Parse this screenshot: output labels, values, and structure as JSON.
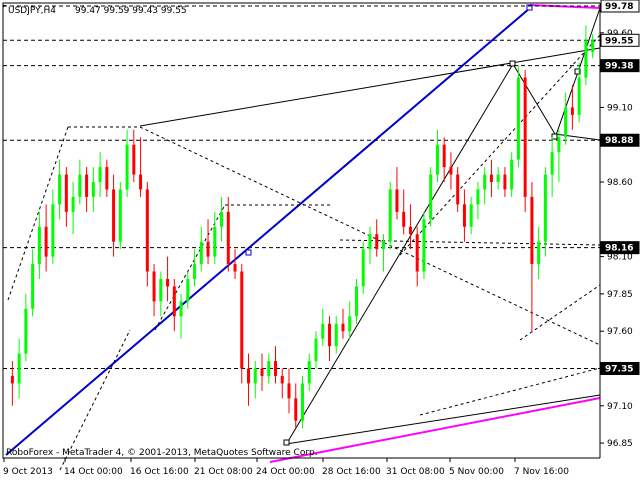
{
  "chart_data": {
    "type": "candlestick",
    "symbol": "USDJPY,H4",
    "ohlc_readout": "99.47 99.59 99.43 99.55",
    "footer": "RoboForex - MetaTrader 4, © 2001-2013, MetaQuotes Software Corp.",
    "ylim": [
      96.75,
      99.8
    ],
    "y_ticks": [
      "99.60",
      "99.10",
      "98.60",
      "98.10",
      "97.85",
      "97.60",
      "97.10",
      "96.85"
    ],
    "x_ticks": [
      "9 Oct 2013",
      "14 Oct 00:00",
      "16 Oct 16:00",
      "21 Oct 08:00",
      "24 Oct 00:00",
      "28 Oct 16:00",
      "31 Oct 08:00",
      "5 Nov 00:00",
      "7 Nov 16:00"
    ],
    "levels": [
      {
        "value": "99.78",
        "price": 99.78,
        "color": "#000000"
      },
      {
        "value": "99.55",
        "price": 99.55,
        "color": "#000000"
      },
      {
        "value": "99.38",
        "price": 99.38,
        "color": "#ffffff"
      },
      {
        "value": "98.88",
        "price": 98.88,
        "color": "#ffffff"
      },
      {
        "value": "98.16",
        "price": 98.16,
        "color": "#ffffff"
      },
      {
        "value": "97.35",
        "price": 97.35,
        "color": "#ffffff"
      }
    ],
    "colors": {
      "bull": "#00ff00",
      "bear": "#ff0000",
      "trend": "#0000cd",
      "channel": "#ff00ff",
      "grid": "#000000"
    },
    "candles": [
      [
        97.3,
        97.4,
        97.1,
        97.25
      ],
      [
        97.25,
        97.55,
        97.15,
        97.45
      ],
      [
        97.45,
        97.85,
        97.4,
        97.75
      ],
      [
        97.75,
        98.15,
        97.7,
        98.05
      ],
      [
        98.05,
        98.4,
        97.95,
        98.3
      ],
      [
        98.3,
        98.45,
        98.0,
        98.1
      ],
      [
        98.1,
        98.55,
        98.05,
        98.45
      ],
      [
        98.45,
        98.75,
        98.35,
        98.65
      ],
      [
        98.65,
        98.7,
        98.3,
        98.4
      ],
      [
        98.4,
        98.6,
        98.25,
        98.5
      ],
      [
        98.5,
        98.75,
        98.45,
        98.65
      ],
      [
        98.65,
        98.7,
        98.4,
        98.5
      ],
      [
        98.5,
        98.7,
        98.4,
        98.6
      ],
      [
        98.6,
        98.8,
        98.5,
        98.7
      ],
      [
        98.7,
        98.75,
        98.5,
        98.55
      ],
      [
        98.55,
        98.65,
        98.1,
        98.2
      ],
      [
        98.2,
        98.6,
        98.15,
        98.55
      ],
      [
        98.55,
        98.95,
        98.5,
        98.85
      ],
      [
        98.85,
        98.95,
        98.6,
        98.65
      ],
      [
        98.65,
        98.9,
        98.5,
        98.55
      ],
      [
        98.55,
        98.6,
        97.9,
        98.0
      ],
      [
        98.0,
        98.05,
        97.7,
        97.8
      ],
      [
        97.8,
        98.0,
        97.7,
        97.95
      ],
      [
        97.95,
        98.1,
        97.8,
        97.9
      ],
      [
        97.9,
        97.95,
        97.6,
        97.7
      ],
      [
        97.7,
        97.85,
        97.55,
        97.8
      ],
      [
        97.8,
        98.0,
        97.75,
        97.95
      ],
      [
        97.95,
        98.15,
        97.9,
        98.05
      ],
      [
        98.05,
        98.3,
        98.0,
        98.2
      ],
      [
        98.2,
        98.35,
        98.05,
        98.1
      ],
      [
        98.1,
        98.4,
        98.05,
        98.3
      ],
      [
        98.3,
        98.5,
        98.2,
        98.4
      ],
      [
        98.4,
        98.5,
        98.0,
        98.05
      ],
      [
        98.05,
        98.15,
        97.95,
        98.0
      ],
      [
        98.0,
        98.05,
        97.25,
        97.35
      ],
      [
        97.35,
        97.45,
        97.1,
        97.25
      ],
      [
        97.25,
        97.4,
        97.15,
        97.35
      ],
      [
        97.35,
        97.45,
        97.2,
        97.3
      ],
      [
        97.3,
        97.45,
        97.25,
        97.4
      ],
      [
        97.4,
        97.5,
        97.25,
        97.3
      ],
      [
        97.3,
        97.35,
        97.15,
        97.25
      ],
      [
        97.25,
        97.35,
        97.05,
        97.15
      ],
      [
        97.15,
        97.25,
        96.95,
        97.0
      ],
      [
        97.0,
        97.3,
        96.95,
        97.25
      ],
      [
        97.25,
        97.45,
        97.2,
        97.4
      ],
      [
        97.4,
        97.6,
        97.35,
        97.55
      ],
      [
        97.55,
        97.75,
        97.5,
        97.65
      ],
      [
        97.65,
        97.7,
        97.4,
        97.5
      ],
      [
        97.5,
        97.7,
        97.45,
        97.65
      ],
      [
        97.65,
        97.75,
        97.55,
        97.6
      ],
      [
        97.6,
        97.8,
        97.55,
        97.7
      ],
      [
        97.7,
        97.95,
        97.65,
        97.9
      ],
      [
        97.9,
        98.2,
        97.85,
        98.15
      ],
      [
        98.15,
        98.3,
        98.05,
        98.25
      ],
      [
        98.25,
        98.35,
        98.1,
        98.15
      ],
      [
        98.15,
        98.25,
        98.0,
        98.2
      ],
      [
        98.2,
        98.6,
        98.15,
        98.55
      ],
      [
        98.55,
        98.7,
        98.35,
        98.4
      ],
      [
        98.4,
        98.55,
        98.25,
        98.3
      ],
      [
        98.3,
        98.45,
        98.15,
        98.25
      ],
      [
        98.25,
        98.3,
        97.9,
        98.0
      ],
      [
        98.0,
        98.4,
        97.95,
        98.35
      ],
      [
        98.35,
        98.7,
        98.3,
        98.65
      ],
      [
        98.65,
        98.95,
        98.6,
        98.85
      ],
      [
        98.85,
        98.9,
        98.6,
        98.7
      ],
      [
        98.7,
        98.8,
        98.55,
        98.65
      ],
      [
        98.65,
        98.7,
        98.4,
        98.45
      ],
      [
        98.45,
        98.55,
        98.2,
        98.3
      ],
      [
        98.3,
        98.5,
        98.25,
        98.45
      ],
      [
        98.45,
        98.6,
        98.35,
        98.55
      ],
      [
        98.55,
        98.7,
        98.45,
        98.65
      ],
      [
        98.65,
        98.75,
        98.5,
        98.6
      ],
      [
        98.6,
        98.7,
        98.55,
        98.65
      ],
      [
        98.65,
        98.7,
        98.5,
        98.55
      ],
      [
        98.55,
        98.8,
        98.5,
        98.75
      ],
      [
        98.75,
        99.38,
        98.7,
        99.3
      ],
      [
        99.3,
        99.35,
        98.4,
        98.5
      ],
      [
        98.5,
        98.6,
        97.6,
        98.05
      ],
      [
        98.05,
        98.3,
        97.95,
        98.2
      ],
      [
        98.2,
        98.7,
        98.1,
        98.65
      ],
      [
        98.65,
        98.9,
        98.5,
        98.8
      ],
      [
        98.8,
        98.95,
        98.6,
        98.9
      ],
      [
        98.9,
        99.2,
        98.85,
        99.1
      ],
      [
        99.1,
        99.25,
        98.95,
        99.05
      ],
      [
        99.05,
        99.4,
        99.0,
        99.3
      ],
      [
        99.3,
        99.65,
        99.25,
        99.55
      ],
      [
        99.47,
        99.59,
        99.43,
        99.55
      ]
    ]
  }
}
